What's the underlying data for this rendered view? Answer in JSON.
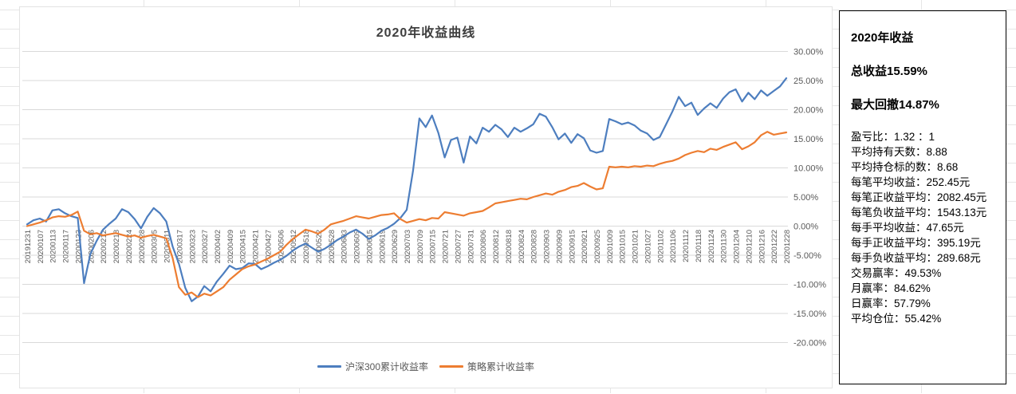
{
  "title": "2020年收益曲线",
  "legend": {
    "items": [
      {
        "label": "沪深300累计收益率",
        "color": "#4d7ebf"
      },
      {
        "label": "策略累计收益率",
        "color": "#ed7d31"
      }
    ]
  },
  "panel": {
    "heading": "2020年收益",
    "summary": [
      "总收益15.59%",
      "最大回撤14.87%"
    ],
    "stats": [
      "盈亏比：1.32 ：1",
      "平均持有天数：8.88",
      "平均持仓标的数：8.68",
      "每笔平均收益：252.45元",
      "每笔正收益平均：2082.45元",
      "每笔负收益平均：1543.13元",
      "每手平均收益：47.65元",
      "每手正收益平均：395.19元",
      "每手负收益平均：289.68元",
      "交易赢率：49.53%",
      "月赢率：84.62%",
      "日赢率：57.79%",
      "平均仓位：55.42%"
    ]
  },
  "chart_data": {
    "type": "line",
    "title": "2020年收益曲线",
    "unit": "%",
    "ylim": [
      -20,
      30
    ],
    "ytick_step": 5,
    "ytick_labels": [
      "30.00%",
      "25.00%",
      "20.00%",
      "15.00%",
      "10.00%",
      "5.00%",
      "0.00%",
      "-5.00%",
      "-10.00%",
      "-15.00%",
      "-20.00%"
    ],
    "grid": "horizontal",
    "legend_position": "bottom",
    "x_tick_rotation": -90,
    "x_labels": [
      "20191231",
      "20200107",
      "20200113",
      "20200117",
      "20200123",
      "20200206",
      "20200212",
      "20200218",
      "20200224",
      "20200228",
      "20200305",
      "20200311",
      "20200317",
      "20200323",
      "20200327",
      "20200402",
      "20200409",
      "20200415",
      "20200421",
      "20200427",
      "20200506",
      "20200512",
      "20200518",
      "20200522",
      "20200528",
      "20200603",
      "20200609",
      "20200615",
      "20200619",
      "20200629",
      "20200703",
      "20200709",
      "20200715",
      "20200721",
      "20200727",
      "20200731",
      "20200806",
      "20200812",
      "20200818",
      "20200824",
      "20200828",
      "20200903",
      "20200909",
      "20200915",
      "20200921",
      "20200925",
      "20201009",
      "20201015",
      "20201021",
      "20201027",
      "20201102",
      "20201106",
      "20201112",
      "20201118",
      "20201124",
      "20201130",
      "20201204",
      "20201210",
      "20201216",
      "20201222",
      "20201228"
    ],
    "sampling": "values sampled at each x_label plus one midpoint between consecutive labels (2 points per interval, 121 points total), values in percent",
    "series": [
      {
        "name": "沪深300累计收益率",
        "color": "#4d7ebf",
        "values": [
          0.3,
          1.0,
          1.3,
          0.8,
          2.7,
          2.9,
          2.2,
          1.7,
          1.4,
          -9.8,
          -4.8,
          -2.5,
          -0.6,
          0.4,
          1.3,
          2.9,
          2.4,
          1.2,
          -0.4,
          1.6,
          3.1,
          2.2,
          0.8,
          -3.5,
          -6.5,
          -10.6,
          -12.9,
          -12.1,
          -10.3,
          -11.2,
          -9.5,
          -8.2,
          -6.8,
          -7.4,
          -7.2,
          -6.4,
          -6.5,
          -7.4,
          -6.9,
          -6.3,
          -5.8,
          -5.1,
          -4.2,
          -3.5,
          -3.0,
          -3.7,
          -4.4,
          -3.9,
          -3.2,
          -2.4,
          -1.8,
          -1.1,
          -0.6,
          -1.3,
          -2.2,
          -1.6,
          -0.8,
          -0.3,
          0.4,
          1.4,
          2.8,
          9.5,
          18.5,
          17.0,
          19.0,
          16.0,
          11.8,
          14.8,
          15.2,
          10.9,
          15.4,
          14.2,
          16.9,
          16.2,
          17.4,
          16.6,
          15.3,
          16.9,
          16.2,
          16.8,
          17.5,
          19.3,
          18.8,
          17.0,
          14.9,
          15.9,
          14.3,
          15.8,
          15.1,
          13.0,
          12.6,
          12.9,
          18.4,
          18.0,
          17.5,
          17.8,
          17.3,
          16.4,
          15.9,
          14.8,
          15.3,
          17.5,
          19.7,
          22.2,
          20.6,
          21.2,
          19.1,
          20.2,
          21.1,
          20.3,
          21.9,
          23.0,
          23.5,
          21.4,
          22.9,
          21.8,
          23.3,
          22.4,
          23.2,
          24.0,
          25.4
        ]
      },
      {
        "name": "策略累计收益率",
        "color": "#ed7d31",
        "values": [
          0.0,
          0.3,
          0.6,
          1.0,
          1.5,
          1.7,
          1.6,
          1.9,
          2.5,
          -0.8,
          -1.4,
          -1.2,
          -1.6,
          -1.4,
          -1.2,
          -1.5,
          -1.8,
          -1.6,
          -2.0,
          -1.7,
          -1.5,
          -1.8,
          -2.1,
          -5.5,
          -10.5,
          -11.8,
          -11.4,
          -12.2,
          -11.6,
          -11.9,
          -11.2,
          -10.5,
          -9.2,
          -8.3,
          -7.4,
          -6.9,
          -6.6,
          -6.1,
          -5.6,
          -5.0,
          -4.4,
          -3.2,
          -2.2,
          -1.4,
          -0.6,
          -0.9,
          -1.3,
          -0.6,
          0.3,
          0.6,
          0.9,
          1.3,
          1.7,
          1.5,
          1.3,
          1.6,
          1.9,
          2.0,
          2.2,
          1.2,
          0.6,
          0.9,
          1.2,
          1.0,
          1.4,
          1.3,
          2.4,
          2.2,
          2.0,
          1.8,
          2.2,
          2.4,
          2.6,
          3.2,
          3.9,
          4.1,
          4.3,
          4.5,
          4.7,
          4.6,
          5.0,
          5.3,
          5.6,
          5.4,
          5.9,
          6.2,
          6.7,
          6.9,
          7.4,
          6.8,
          6.3,
          6.5,
          10.2,
          10.1,
          10.2,
          10.1,
          10.3,
          10.2,
          10.4,
          10.3,
          10.7,
          11.0,
          11.2,
          11.6,
          12.2,
          12.6,
          12.9,
          12.7,
          13.3,
          13.1,
          13.6,
          14.0,
          14.4,
          13.2,
          13.7,
          14.4,
          15.6,
          16.2,
          15.7,
          15.9,
          16.1
        ]
      }
    ]
  }
}
